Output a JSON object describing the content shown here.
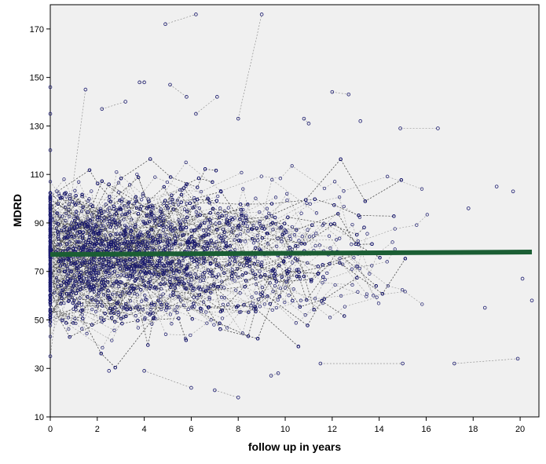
{
  "chart_data": {
    "type": "scatter",
    "title": "",
    "xlabel": "follow up in years",
    "ylabel": "MDRD",
    "xlim": [
      0,
      20.8
    ],
    "ylim": [
      10,
      180
    ],
    "x_ticks": [
      0,
      2,
      4,
      6,
      8,
      10,
      12,
      14,
      16,
      18,
      20
    ],
    "y_ticks": [
      10,
      30,
      50,
      70,
      90,
      110,
      130,
      150,
      170
    ],
    "grid": false,
    "legend": "none",
    "series": [
      {
        "style": "individual trajectories (dashed lines with circle markers)",
        "color": "#1a1a6e",
        "line_color": "#555555",
        "note": "several thousand overlapping points; dense region 40-110 for 0-10 years",
        "sample_points": [
          [
            0.0,
            146
          ],
          [
            0.0,
            135
          ],
          [
            0.0,
            120
          ],
          [
            0.0,
            100
          ],
          [
            0.0,
            80
          ],
          [
            0.0,
            60
          ],
          [
            0.0,
            35
          ],
          [
            1.5,
            145
          ],
          [
            2.2,
            137
          ],
          [
            3.2,
            140
          ],
          [
            3.8,
            148
          ],
          [
            4.0,
            148
          ],
          [
            4.9,
            172
          ],
          [
            6.2,
            176
          ],
          [
            5.1,
            147
          ],
          [
            5.8,
            142
          ],
          [
            6.2,
            135
          ],
          [
            7.1,
            142
          ],
          [
            8.0,
            133
          ],
          [
            9.0,
            176
          ],
          [
            10.8,
            133
          ],
          [
            11.0,
            131
          ],
          [
            12.0,
            144
          ],
          [
            12.7,
            143
          ],
          [
            14.9,
            129
          ],
          [
            16.5,
            129
          ],
          [
            13.2,
            132
          ],
          [
            2.5,
            29
          ],
          [
            4.0,
            29
          ],
          [
            6.0,
            22
          ],
          [
            7.0,
            21
          ],
          [
            8.0,
            18
          ],
          [
            9.4,
            27
          ],
          [
            9.7,
            28
          ],
          [
            11.5,
            32
          ],
          [
            15.0,
            32
          ],
          [
            17.2,
            32
          ],
          [
            19.9,
            34
          ],
          [
            20.5,
            58
          ],
          [
            20.1,
            67
          ],
          [
            19.7,
            103
          ],
          [
            19.0,
            105
          ],
          [
            18.5,
            55
          ],
          [
            17.8,
            96
          ]
        ]
      }
    ],
    "reference_line": {
      "label": "",
      "color": "#1b5e34",
      "x": [
        0,
        20.5
      ],
      "y": [
        77,
        78
      ]
    }
  }
}
